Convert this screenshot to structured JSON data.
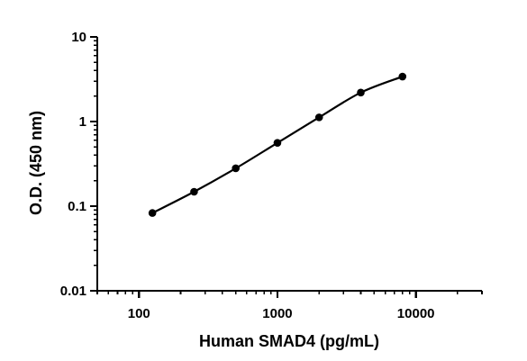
{
  "chart_data": {
    "type": "scatter",
    "xlabel": "Human SMAD4 (pg/mL)",
    "ylabel": "O.D. (450 nm)",
    "x_scale": "log",
    "y_scale": "log",
    "xlim": [
      50,
      30000
    ],
    "ylim": [
      0.01,
      10
    ],
    "x_ticks": [
      100,
      1000,
      10000
    ],
    "x_tick_labels": [
      "100",
      "1000",
      "10000"
    ],
    "y_ticks": [
      0.01,
      0.1,
      1,
      10
    ],
    "y_tick_labels": [
      "0.01",
      "0.1",
      "1",
      "10"
    ],
    "grid": false,
    "fitted_curve": true,
    "series": [
      {
        "x": [
          125,
          250,
          500,
          1000,
          2000,
          4000,
          8000
        ],
        "y": [
          0.083,
          0.148,
          0.28,
          0.56,
          1.12,
          2.2,
          3.4
        ]
      }
    ],
    "colors": {
      "series": "#000000",
      "axis": "#000000"
    }
  }
}
